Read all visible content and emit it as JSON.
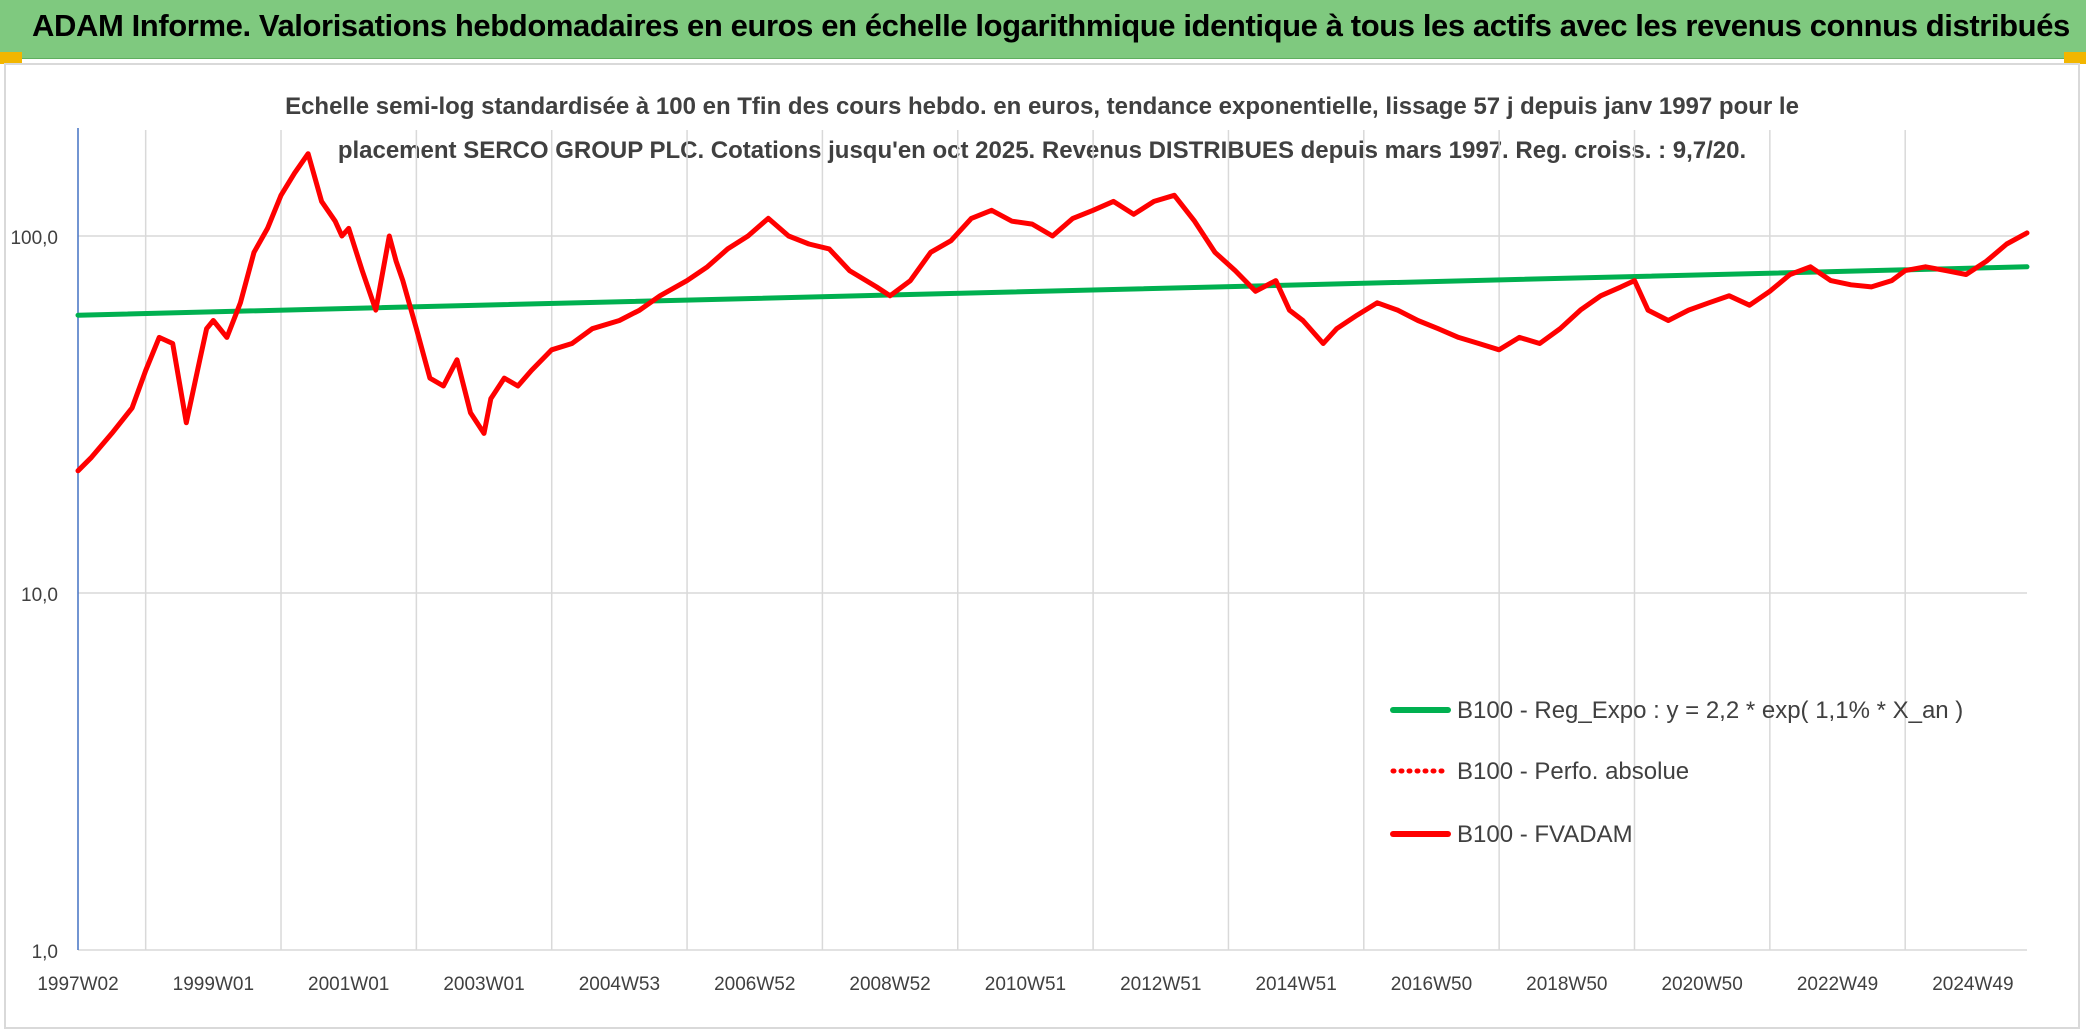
{
  "header": {
    "title": "ADAM Informe. Valorisations hebdomadaires en euros en échelle logarithmique identique à tous les actifs avec les revenus connus distribués"
  },
  "colors": {
    "header_bg": "#7fc97f",
    "trend_green": "#00b050",
    "price_red": "#ff0000",
    "corner_accent": "#f2b600",
    "grid": "#d9d9d9",
    "text": "#404040"
  },
  "chart_data": {
    "type": "line",
    "title_lines": [
      "Echelle semi-log standardisée à 100 en Tfin des cours hebdo. en euros, tendance exponentielle, lissage 57 j depuis janv 1997 pour le",
      "placement SERCO GROUP PLC. Cotations jusqu'en oct 2025. Revenus DISTRIBUES depuis mars 1997. Reg. croiss. : 9,7/20."
    ],
    "y_scale": "log",
    "ylim": [
      1,
      200
    ],
    "y_ticks": [
      {
        "value": 1,
        "label": "1,0"
      },
      {
        "value": 10,
        "label": "10,0"
      },
      {
        "value": 100,
        "label": "100,0"
      }
    ],
    "xlim": [
      1997.0,
      2025.8
    ],
    "x_ticks": [
      {
        "value": 1997.0,
        "label": "1997W02"
      },
      {
        "value": 1999.0,
        "label": "1999W01"
      },
      {
        "value": 2001.0,
        "label": "2001W01"
      },
      {
        "value": 2003.0,
        "label": "2003W01"
      },
      {
        "value": 2005.0,
        "label": "2004W53"
      },
      {
        "value": 2007.0,
        "label": "2006W52"
      },
      {
        "value": 2009.0,
        "label": "2008W52"
      },
      {
        "value": 2011.0,
        "label": "2010W51"
      },
      {
        "value": 2013.0,
        "label": "2012W51"
      },
      {
        "value": 2015.0,
        "label": "2014W51"
      },
      {
        "value": 2017.0,
        "label": "2016W50"
      },
      {
        "value": 2019.0,
        "label": "2018W50"
      },
      {
        "value": 2021.0,
        "label": "2020W50"
      },
      {
        "value": 2023.0,
        "label": "2022W49"
      },
      {
        "value": 2025.0,
        "label": "2024W49"
      }
    ],
    "grid": true,
    "legend_position": "lower-right",
    "series": [
      {
        "name": "B100 - Reg_Expo : y = 2,2 * exp( 1,1% *  X_an )",
        "color": "#00b050",
        "style": "solid",
        "x": [
          1997.0,
          2025.8
        ],
        "y": [
          60,
          82
        ]
      },
      {
        "name": "B100 - Perfo. absolue",
        "color": "#ff0000",
        "style": "dotted",
        "x": [],
        "y": []
      },
      {
        "name": "B100 - FVADAM",
        "color": "#ff0000",
        "style": "solid",
        "x": [
          1997.0,
          1997.2,
          1997.5,
          1997.8,
          1998.0,
          1998.2,
          1998.4,
          1998.6,
          1998.8,
          1998.9,
          1999.0,
          1999.2,
          1999.4,
          1999.6,
          1999.8,
          2000.0,
          2000.2,
          2000.4,
          2000.6,
          2000.8,
          2000.9,
          2001.0,
          2001.2,
          2001.4,
          2001.6,
          2001.7,
          2001.8,
          2002.0,
          2002.2,
          2002.4,
          2002.6,
          2002.8,
          2003.0,
          2003.1,
          2003.3,
          2003.5,
          2003.7,
          2004.0,
          2004.3,
          2004.6,
          2005.0,
          2005.3,
          2005.6,
          2006.0,
          2006.3,
          2006.6,
          2006.9,
          2007.2,
          2007.5,
          2007.8,
          2008.1,
          2008.4,
          2008.8,
          2009.0,
          2009.3,
          2009.6,
          2009.9,
          2010.2,
          2010.5,
          2010.8,
          2011.1,
          2011.4,
          2011.7,
          2012.0,
          2012.3,
          2012.6,
          2012.9,
          2013.2,
          2013.5,
          2013.8,
          2014.1,
          2014.4,
          2014.7,
          2014.9,
          2015.1,
          2015.4,
          2015.6,
          2015.9,
          2016.2,
          2016.5,
          2016.8,
          2017.1,
          2017.4,
          2017.7,
          2018.0,
          2018.3,
          2018.6,
          2018.9,
          2019.2,
          2019.5,
          2019.8,
          2020.0,
          2020.2,
          2020.5,
          2020.8,
          2021.1,
          2021.4,
          2021.7,
          2022.0,
          2022.3,
          2022.6,
          2022.9,
          2023.2,
          2023.5,
          2023.8,
          2024.0,
          2024.3,
          2024.6,
          2024.9,
          2025.2,
          2025.5,
          2025.8
        ],
        "y": [
          22,
          24,
          28,
          33,
          42,
          52,
          50,
          30,
          45,
          55,
          58,
          52,
          65,
          90,
          105,
          130,
          150,
          170,
          125,
          110,
          100,
          105,
          80,
          62,
          100,
          85,
          75,
          55,
          40,
          38,
          45,
          32,
          28,
          35,
          40,
          38,
          42,
          48,
          50,
          55,
          58,
          62,
          68,
          75,
          82,
          92,
          100,
          112,
          100,
          95,
          92,
          80,
          72,
          68,
          75,
          90,
          97,
          112,
          118,
          110,
          108,
          100,
          112,
          118,
          125,
          115,
          125,
          130,
          110,
          90,
          80,
          70,
          75,
          62,
          58,
          50,
          55,
          60,
          65,
          62,
          58,
          55,
          52,
          50,
          48,
          52,
          50,
          55,
          62,
          68,
          72,
          75,
          62,
          58,
          62,
          65,
          68,
          64,
          70,
          78,
          82,
          75,
          73,
          72,
          75,
          80,
          82,
          80,
          78,
          85,
          95,
          102
        ]
      }
    ]
  }
}
